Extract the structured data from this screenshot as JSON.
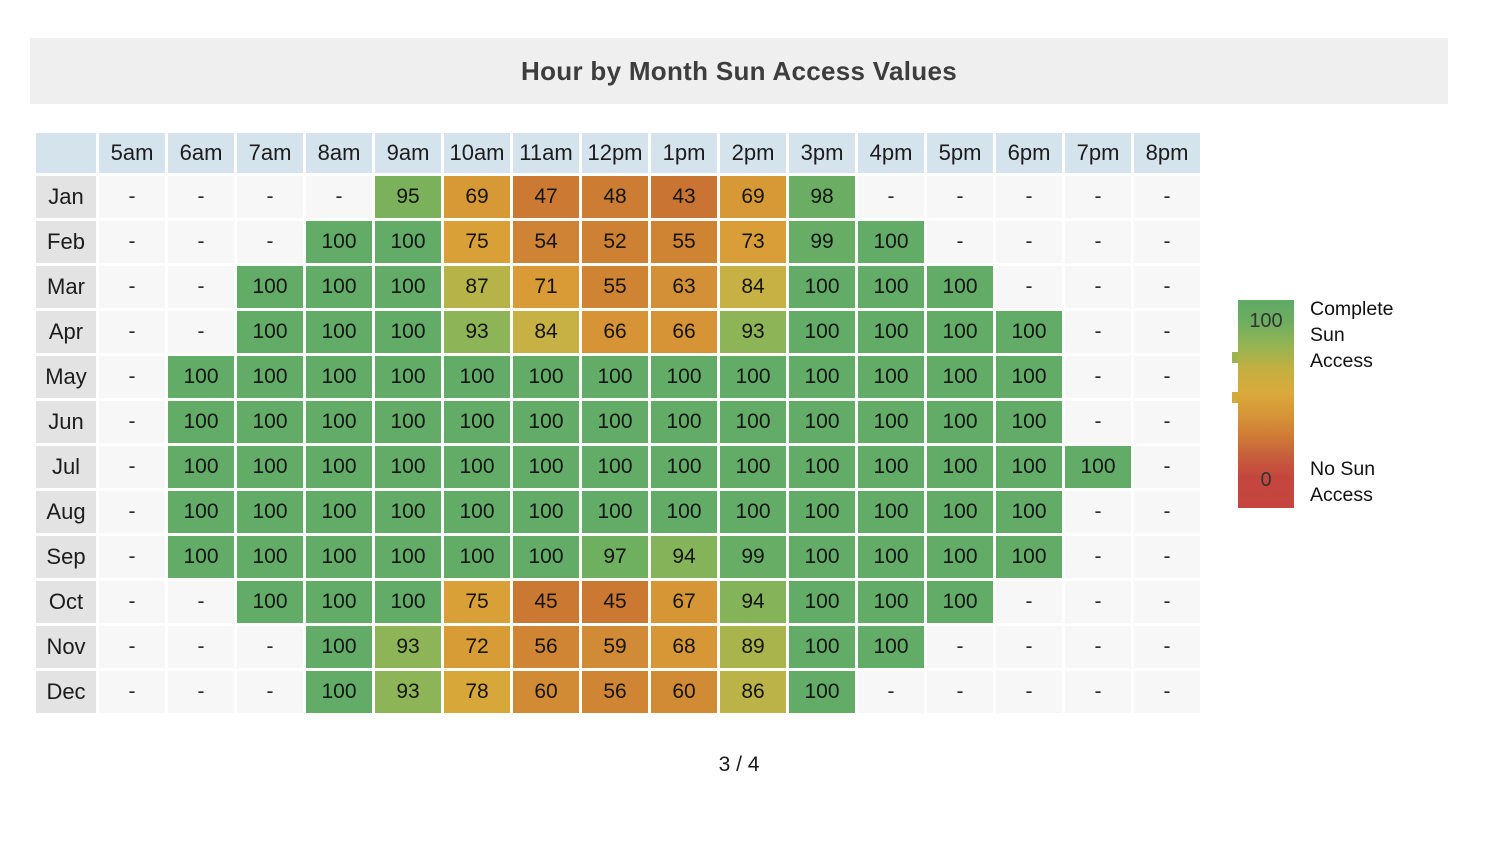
{
  "title": "Hour by Month Sun Access Values",
  "footer": {
    "page_indicator": "3 / 4"
  },
  "colors": {
    "title_bar_bg": "#efefef",
    "title_text": "#3d3d3d",
    "header_bg": "#d5e3ed",
    "month_label_bg": "#e3e3e3",
    "empty_cell_bg": "#f7f7f7",
    "cell_text": "#151515",
    "colormap_stops": [
      [
        0,
        "#c33d3b"
      ],
      [
        40,
        "#c96e32"
      ],
      [
        45,
        "#cb7833"
      ],
      [
        50,
        "#cd7e33"
      ],
      [
        55,
        "#cf8434"
      ],
      [
        60,
        "#d28b35"
      ],
      [
        65,
        "#d59336"
      ],
      [
        70,
        "#d89a36"
      ],
      [
        75,
        "#d9a037"
      ],
      [
        80,
        "#d5ab3c"
      ],
      [
        84,
        "#c7b144"
      ],
      [
        88,
        "#b0b44b"
      ],
      [
        91,
        "#9bb451"
      ],
      [
        93,
        "#8db456"
      ],
      [
        95,
        "#7bb15b"
      ],
      [
        97,
        "#6faf60"
      ],
      [
        100,
        "#63ac68"
      ]
    ],
    "legend_gradient_stops": [
      [
        0,
        "#60a966"
      ],
      [
        10,
        "#6cae60"
      ],
      [
        22,
        "#94b453"
      ],
      [
        33,
        "#c3af41"
      ],
      [
        45,
        "#d9a93b"
      ],
      [
        55,
        "#d69537"
      ],
      [
        65,
        "#cf7c35"
      ],
      [
        75,
        "#c75f3c"
      ],
      [
        85,
        "#c4473e"
      ],
      [
        100,
        "#c5443f"
      ]
    ],
    "legend_ticks": [
      {
        "top_pct": 25,
        "color": "#9cb450"
      },
      {
        "top_pct": 44,
        "color": "#d3a93c"
      }
    ]
  },
  "chart_data": {
    "type": "heatmap",
    "title": "Hour by Month Sun Access Values",
    "x_labels": [
      "5am",
      "6am",
      "7am",
      "8am",
      "9am",
      "10am",
      "11am",
      "12pm",
      "1pm",
      "2pm",
      "3pm",
      "4pm",
      "5pm",
      "6pm",
      "7pm",
      "8pm"
    ],
    "y_labels": [
      "Jan",
      "Feb",
      "Mar",
      "Apr",
      "May",
      "Jun",
      "Jul",
      "Aug",
      "Sep",
      "Oct",
      "Nov",
      "Dec"
    ],
    "values": [
      [
        null,
        null,
        null,
        null,
        95,
        69,
        47,
        48,
        43,
        69,
        98,
        null,
        null,
        null,
        null,
        null
      ],
      [
        null,
        null,
        null,
        100,
        100,
        75,
        54,
        52,
        55,
        73,
        99,
        100,
        null,
        null,
        null,
        null
      ],
      [
        null,
        null,
        100,
        100,
        100,
        87,
        71,
        55,
        63,
        84,
        100,
        100,
        100,
        null,
        null,
        null
      ],
      [
        null,
        null,
        100,
        100,
        100,
        93,
        84,
        66,
        66,
        93,
        100,
        100,
        100,
        100,
        null,
        null
      ],
      [
        null,
        100,
        100,
        100,
        100,
        100,
        100,
        100,
        100,
        100,
        100,
        100,
        100,
        100,
        null,
        null
      ],
      [
        null,
        100,
        100,
        100,
        100,
        100,
        100,
        100,
        100,
        100,
        100,
        100,
        100,
        100,
        null,
        null
      ],
      [
        null,
        100,
        100,
        100,
        100,
        100,
        100,
        100,
        100,
        100,
        100,
        100,
        100,
        100,
        100,
        null
      ],
      [
        null,
        100,
        100,
        100,
        100,
        100,
        100,
        100,
        100,
        100,
        100,
        100,
        100,
        100,
        null,
        null
      ],
      [
        null,
        100,
        100,
        100,
        100,
        100,
        100,
        97,
        94,
        99,
        100,
        100,
        100,
        100,
        null,
        null
      ],
      [
        null,
        null,
        100,
        100,
        100,
        75,
        45,
        45,
        67,
        94,
        100,
        100,
        100,
        null,
        null,
        null
      ],
      [
        null,
        null,
        null,
        100,
        93,
        72,
        56,
        59,
        68,
        89,
        100,
        100,
        null,
        null,
        null,
        null
      ],
      [
        null,
        null,
        null,
        100,
        93,
        78,
        60,
        56,
        60,
        86,
        100,
        null,
        null,
        null,
        null,
        null
      ]
    ],
    "null_display": "-",
    "value_range": [
      0,
      100
    ],
    "legend": {
      "max_value": "100",
      "min_value": "0",
      "max_label": "Complete Sun Access",
      "min_label": "No Sun Access"
    }
  }
}
